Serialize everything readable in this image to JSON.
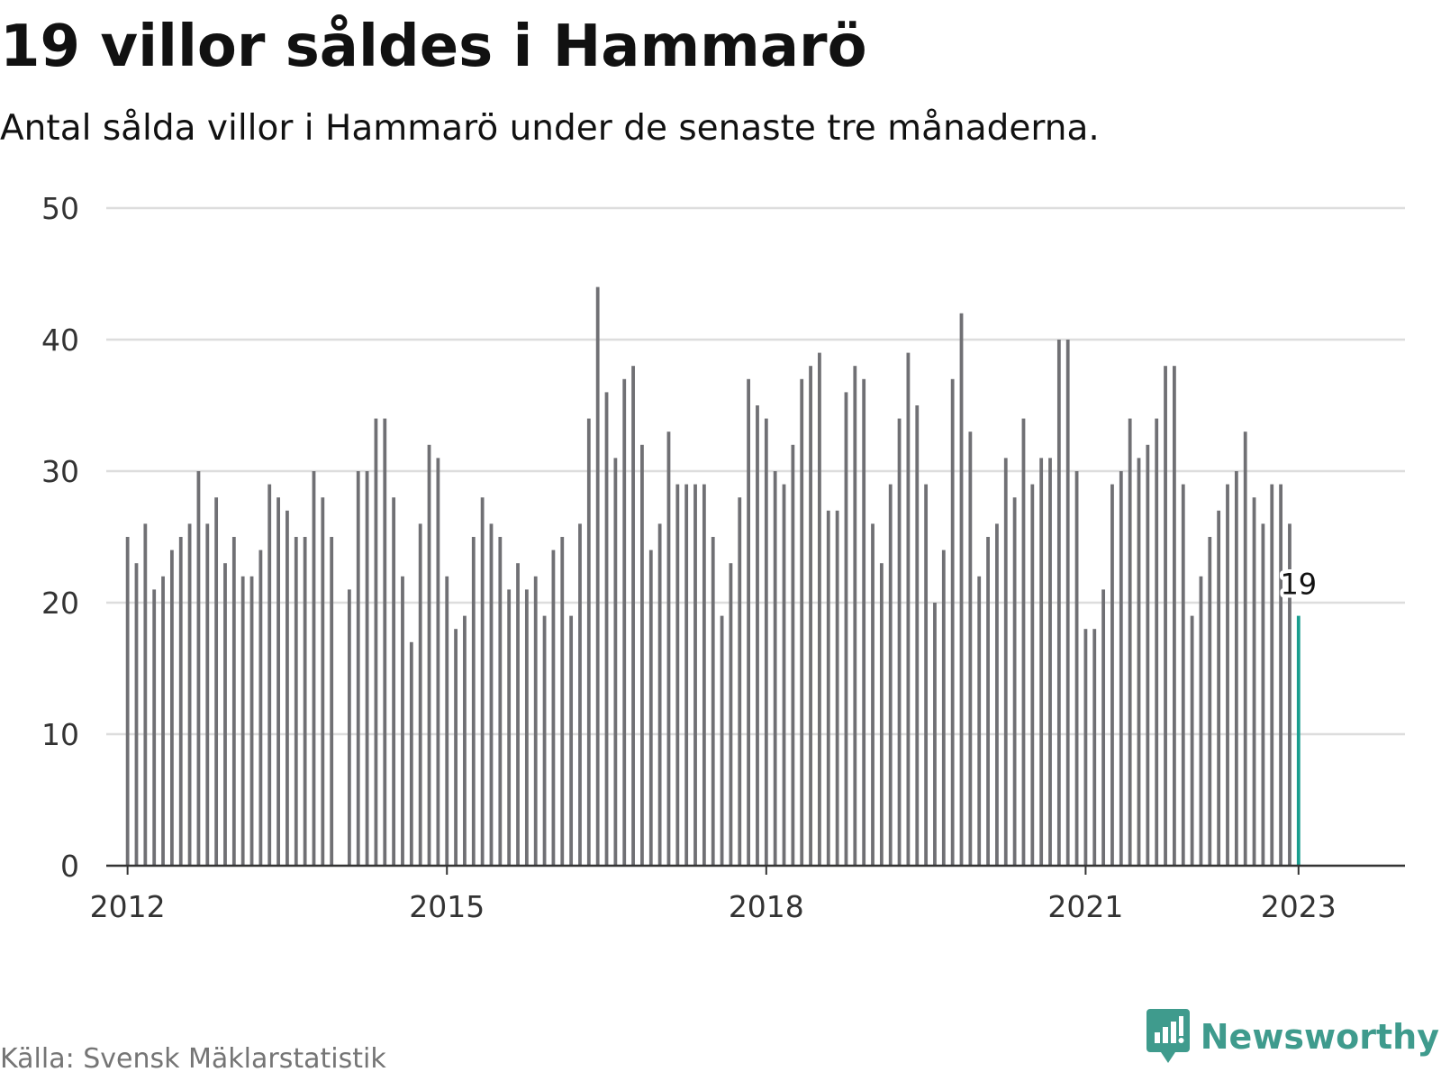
{
  "title": "19 villor såldes i Hammarö",
  "subtitle": "Antal sålda villor i Hammarö under de senaste tre månaderna.",
  "source": "Källa: Svensk Mäklarstatistik",
  "brand": {
    "name": "Newsworthy",
    "icon": "newsworthy-logo-icon"
  },
  "colors": {
    "bar": "#707074",
    "highlight": "#1a9e8f",
    "grid": "#dddddd",
    "axis": "#333333",
    "brand": "#3f9b8d",
    "source": "#757575"
  },
  "chart_data": {
    "type": "bar",
    "title": "19 villor såldes i Hammarö",
    "subtitle": "Antal sålda villor i Hammarö under de senaste tre månaderna.",
    "xlabel": "",
    "ylabel": "",
    "ylim": [
      0,
      50
    ],
    "xlim": [
      2011.8,
      2024.0
    ],
    "yticks": [
      0,
      10,
      20,
      30,
      40,
      50
    ],
    "xticks": [
      {
        "value": 2012,
        "label": "2012"
      },
      {
        "value": 2015,
        "label": "2015"
      },
      {
        "value": 2018,
        "label": "2018"
      },
      {
        "value": 2021,
        "label": "2021"
      },
      {
        "value": 2023,
        "label": "2023"
      }
    ],
    "grid": true,
    "highlight": {
      "x": 2023,
      "value": 19,
      "label": "19"
    },
    "bars": [
      {
        "x": 2012.0,
        "value": 25
      },
      {
        "x": 2012.0833,
        "value": 23
      },
      {
        "x": 2012.1667,
        "value": 26
      },
      {
        "x": 2012.25,
        "value": 21
      },
      {
        "x": 2012.3333,
        "value": 22
      },
      {
        "x": 2012.4167,
        "value": 24
      },
      {
        "x": 2012.5,
        "value": 25
      },
      {
        "x": 2012.5833,
        "value": 26
      },
      {
        "x": 2012.6667,
        "value": 30
      },
      {
        "x": 2012.75,
        "value": 26
      },
      {
        "x": 2012.8333,
        "value": 28
      },
      {
        "x": 2012.9167,
        "value": 23
      },
      {
        "x": 2013.0,
        "value": 25
      },
      {
        "x": 2013.0833,
        "value": 22
      },
      {
        "x": 2013.1667,
        "value": 22
      },
      {
        "x": 2013.25,
        "value": 24
      },
      {
        "x": 2013.3333,
        "value": 29
      },
      {
        "x": 2013.4167,
        "value": 28
      },
      {
        "x": 2013.5,
        "value": 27
      },
      {
        "x": 2013.5833,
        "value": 25
      },
      {
        "x": 2013.6667,
        "value": 25
      },
      {
        "x": 2013.75,
        "value": 30
      },
      {
        "x": 2013.8333,
        "value": 28
      },
      {
        "x": 2013.9167,
        "value": 25
      },
      {
        "x": 2014.0833,
        "value": 21
      },
      {
        "x": 2014.1667,
        "value": 30
      },
      {
        "x": 2014.25,
        "value": 30
      },
      {
        "x": 2014.3333,
        "value": 34
      },
      {
        "x": 2014.4167,
        "value": 34
      },
      {
        "x": 2014.5,
        "value": 28
      },
      {
        "x": 2014.5833,
        "value": 22
      },
      {
        "x": 2014.6667,
        "value": 17
      },
      {
        "x": 2014.75,
        "value": 26
      },
      {
        "x": 2014.8333,
        "value": 32
      },
      {
        "x": 2014.9167,
        "value": 31
      },
      {
        "x": 2015.0,
        "value": 22
      },
      {
        "x": 2015.0833,
        "value": 18
      },
      {
        "x": 2015.1667,
        "value": 19
      },
      {
        "x": 2015.25,
        "value": 25
      },
      {
        "x": 2015.3333,
        "value": 28
      },
      {
        "x": 2015.4167,
        "value": 26
      },
      {
        "x": 2015.5,
        "value": 25
      },
      {
        "x": 2015.5833,
        "value": 21
      },
      {
        "x": 2015.6667,
        "value": 23
      },
      {
        "x": 2015.75,
        "value": 21
      },
      {
        "x": 2015.8333,
        "value": 22
      },
      {
        "x": 2015.9167,
        "value": 19
      },
      {
        "x": 2016.0,
        "value": 24
      },
      {
        "x": 2016.0833,
        "value": 25
      },
      {
        "x": 2016.1667,
        "value": 19
      },
      {
        "x": 2016.25,
        "value": 26
      },
      {
        "x": 2016.3333,
        "value": 34
      },
      {
        "x": 2016.4167,
        "value": 44
      },
      {
        "x": 2016.5,
        "value": 36
      },
      {
        "x": 2016.5833,
        "value": 31
      },
      {
        "x": 2016.6667,
        "value": 37
      },
      {
        "x": 2016.75,
        "value": 38
      },
      {
        "x": 2016.8333,
        "value": 32
      },
      {
        "x": 2016.9167,
        "value": 24
      },
      {
        "x": 2017.0,
        "value": 26
      },
      {
        "x": 2017.0833,
        "value": 33
      },
      {
        "x": 2017.1667,
        "value": 29
      },
      {
        "x": 2017.25,
        "value": 29
      },
      {
        "x": 2017.3333,
        "value": 29
      },
      {
        "x": 2017.4167,
        "value": 29
      },
      {
        "x": 2017.5,
        "value": 25
      },
      {
        "x": 2017.5833,
        "value": 19
      },
      {
        "x": 2017.6667,
        "value": 23
      },
      {
        "x": 2017.75,
        "value": 28
      },
      {
        "x": 2017.8333,
        "value": 37
      },
      {
        "x": 2017.9167,
        "value": 35
      },
      {
        "x": 2018.0,
        "value": 34
      },
      {
        "x": 2018.0833,
        "value": 30
      },
      {
        "x": 2018.1667,
        "value": 29
      },
      {
        "x": 2018.25,
        "value": 32
      },
      {
        "x": 2018.3333,
        "value": 37
      },
      {
        "x": 2018.4167,
        "value": 38
      },
      {
        "x": 2018.5,
        "value": 39
      },
      {
        "x": 2018.5833,
        "value": 27
      },
      {
        "x": 2018.6667,
        "value": 27
      },
      {
        "x": 2018.75,
        "value": 36
      },
      {
        "x": 2018.8333,
        "value": 38
      },
      {
        "x": 2018.9167,
        "value": 37
      },
      {
        "x": 2019.0,
        "value": 26
      },
      {
        "x": 2019.0833,
        "value": 23
      },
      {
        "x": 2019.1667,
        "value": 29
      },
      {
        "x": 2019.25,
        "value": 34
      },
      {
        "x": 2019.3333,
        "value": 39
      },
      {
        "x": 2019.4167,
        "value": 35
      },
      {
        "x": 2019.5,
        "value": 29
      },
      {
        "x": 2019.5833,
        "value": 20
      },
      {
        "x": 2019.6667,
        "value": 24
      },
      {
        "x": 2019.75,
        "value": 37
      },
      {
        "x": 2019.8333,
        "value": 42
      },
      {
        "x": 2019.9167,
        "value": 33
      },
      {
        "x": 2020.0,
        "value": 22
      },
      {
        "x": 2020.0833,
        "value": 25
      },
      {
        "x": 2020.1667,
        "value": 26
      },
      {
        "x": 2020.25,
        "value": 31
      },
      {
        "x": 2020.3333,
        "value": 28
      },
      {
        "x": 2020.4167,
        "value": 34
      },
      {
        "x": 2020.5,
        "value": 29
      },
      {
        "x": 2020.5833,
        "value": 31
      },
      {
        "x": 2020.6667,
        "value": 31
      },
      {
        "x": 2020.75,
        "value": 40
      },
      {
        "x": 2020.8333,
        "value": 40
      },
      {
        "x": 2020.9167,
        "value": 30
      },
      {
        "x": 2021.0,
        "value": 18
      },
      {
        "x": 2021.0833,
        "value": 18
      },
      {
        "x": 2021.1667,
        "value": 21
      },
      {
        "x": 2021.25,
        "value": 29
      },
      {
        "x": 2021.3333,
        "value": 30
      },
      {
        "x": 2021.4167,
        "value": 34
      },
      {
        "x": 2021.5,
        "value": 31
      },
      {
        "x": 2021.5833,
        "value": 32
      },
      {
        "x": 2021.6667,
        "value": 34
      },
      {
        "x": 2021.75,
        "value": 38
      },
      {
        "x": 2021.8333,
        "value": 38
      },
      {
        "x": 2021.9167,
        "value": 29
      },
      {
        "x": 2022.0,
        "value": 19
      },
      {
        "x": 2022.0833,
        "value": 22
      },
      {
        "x": 2022.1667,
        "value": 25
      },
      {
        "x": 2022.25,
        "value": 27
      },
      {
        "x": 2022.3333,
        "value": 29
      },
      {
        "x": 2022.4167,
        "value": 30
      },
      {
        "x": 2022.5,
        "value": 33
      },
      {
        "x": 2022.5833,
        "value": 28
      },
      {
        "x": 2022.6667,
        "value": 26
      },
      {
        "x": 2022.75,
        "value": 29
      },
      {
        "x": 2022.8333,
        "value": 29
      },
      {
        "x": 2022.9167,
        "value": 26
      },
      {
        "x": 2023.0,
        "value": 19
      }
    ]
  }
}
